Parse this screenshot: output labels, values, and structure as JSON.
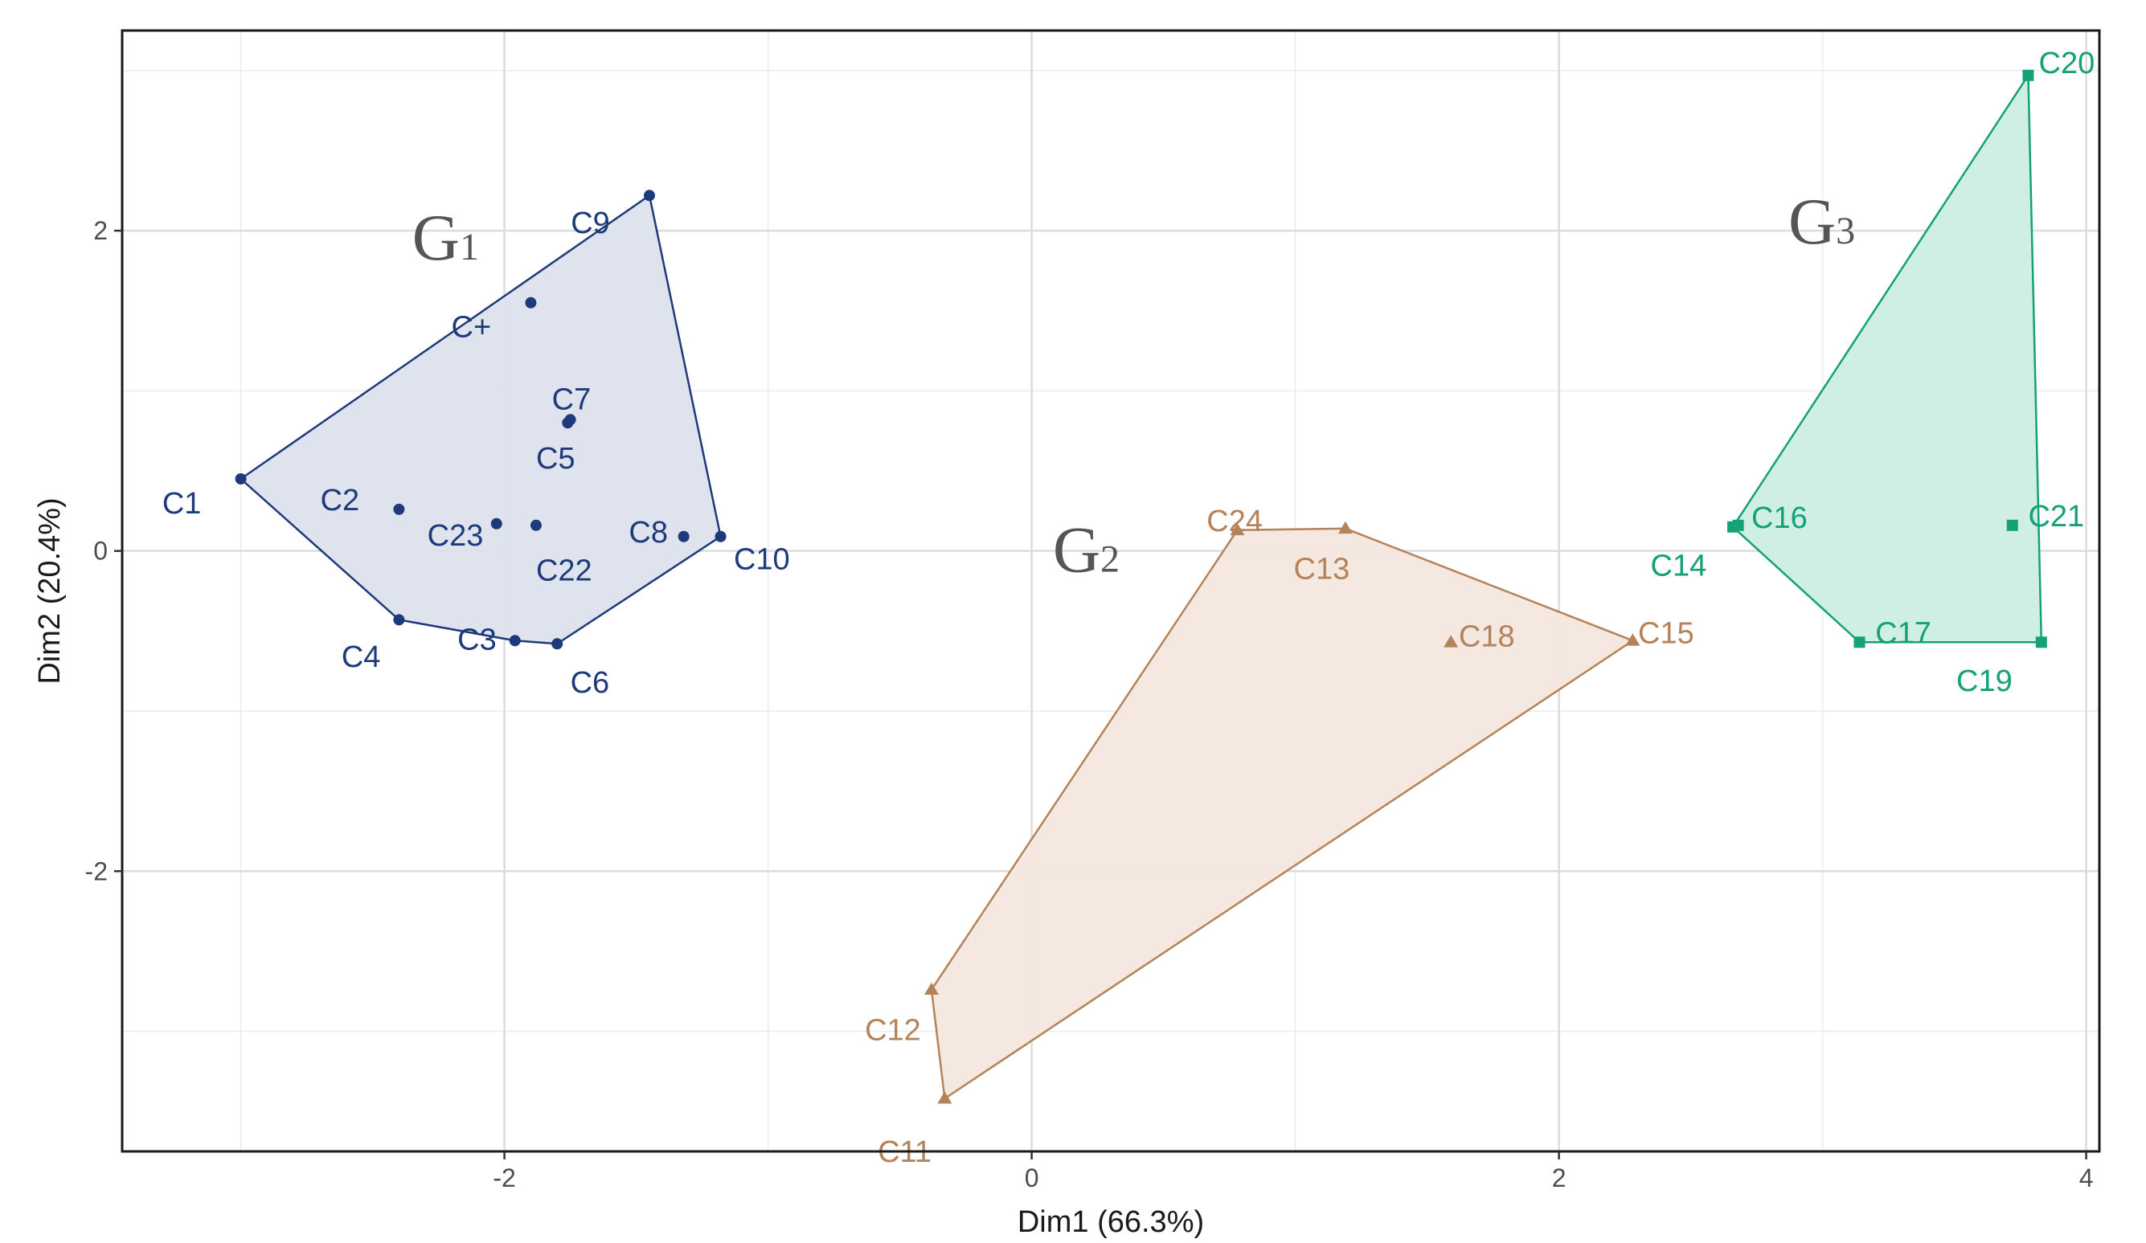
{
  "chart_data": {
    "type": "scatter",
    "title": "",
    "xlabel": "Dim1 (66.3%)",
    "ylabel": "Dim2 (20.4%)",
    "xlim": [
      -3.45,
      4.05
    ],
    "ylim": [
      -3.75,
      3.25
    ],
    "xticks": [
      -2,
      0,
      2,
      4
    ],
    "yticks": [
      -2,
      0,
      2
    ],
    "xtick_labels": [
      "-2",
      "0",
      "2",
      "4"
    ],
    "ytick_labels": [
      "-2",
      "0",
      "2"
    ],
    "grid": true,
    "legend": "none",
    "groups": [
      {
        "name": "G1",
        "label_main": "G",
        "label_sub": "1",
        "label_pos": [
          -2.35,
          1.95
        ],
        "color": "#1f3a7a",
        "fill": "#dce1ec",
        "marker": "circle",
        "hull": [
          "C1",
          "C9",
          "C10",
          "C6",
          "C3",
          "C4"
        ],
        "points": [
          {
            "name": "C1",
            "x": -3.0,
            "y": 0.45,
            "lx": -3.15,
            "ly": 0.3,
            "anchor": "end"
          },
          {
            "name": "C9",
            "x": -1.45,
            "y": 2.22,
            "lx": -1.6,
            "ly": 2.05,
            "anchor": "end"
          },
          {
            "name": "C+",
            "x": -1.9,
            "y": 1.55,
            "lx": -2.05,
            "ly": 1.4,
            "anchor": "end"
          },
          {
            "name": "C7",
            "x": -1.75,
            "y": 0.82,
            "lx": -1.82,
            "ly": 0.95,
            "anchor": "start"
          },
          {
            "name": "C5",
            "x": -1.76,
            "y": 0.8,
            "lx": -1.88,
            "ly": 0.58,
            "anchor": "start"
          },
          {
            "name": "C2",
            "x": -2.4,
            "y": 0.26,
            "lx": -2.55,
            "ly": 0.32,
            "anchor": "end"
          },
          {
            "name": "C23",
            "x": -2.03,
            "y": 0.17,
            "lx": -2.08,
            "ly": 0.1,
            "anchor": "end"
          },
          {
            "name": "C22",
            "x": -1.88,
            "y": 0.16,
            "lx": -1.88,
            "ly": -0.12,
            "anchor": "start"
          },
          {
            "name": "C8",
            "x": -1.32,
            "y": 0.09,
            "lx": -1.38,
            "ly": 0.12,
            "anchor": "end"
          },
          {
            "name": "C10",
            "x": -1.18,
            "y": 0.09,
            "lx": -1.13,
            "ly": -0.05,
            "anchor": "start"
          },
          {
            "name": "C4",
            "x": -2.4,
            "y": -0.43,
            "lx": -2.47,
            "ly": -0.66,
            "anchor": "end"
          },
          {
            "name": "C3",
            "x": -1.96,
            "y": -0.56,
            "lx": -2.03,
            "ly": -0.55,
            "anchor": "end"
          },
          {
            "name": "C6",
            "x": -1.8,
            "y": -0.58,
            "lx": -1.75,
            "ly": -0.82,
            "anchor": "start"
          }
        ]
      },
      {
        "name": "G2",
        "label_main": "G",
        "label_sub": "2",
        "label_pos": [
          0.08,
          0.0
        ],
        "color": "#b5835a",
        "fill": "#f4e7de",
        "marker": "triangle",
        "hull": [
          "C24",
          "C13",
          "C15",
          "C11",
          "C12"
        ],
        "points": [
          {
            "name": "C24",
            "x": 0.78,
            "y": 0.13,
            "lx": 0.77,
            "ly": 0.19,
            "anchor": "middle"
          },
          {
            "name": "C13",
            "x": 1.19,
            "y": 0.14,
            "lx": 1.1,
            "ly": -0.11,
            "anchor": "middle"
          },
          {
            "name": "C18",
            "x": 1.59,
            "y": -0.57,
            "lx": 1.62,
            "ly": -0.53,
            "anchor": "start"
          },
          {
            "name": "C15",
            "x": 2.28,
            "y": -0.56,
            "lx": 2.3,
            "ly": -0.51,
            "anchor": "start"
          },
          {
            "name": "C12",
            "x": -0.38,
            "y": -2.74,
            "lx": -0.42,
            "ly": -2.99,
            "anchor": "end"
          },
          {
            "name": "C11",
            "x": -0.33,
            "y": -3.42,
            "lx": -0.38,
            "ly": -3.75,
            "anchor": "end"
          }
        ]
      },
      {
        "name": "G3",
        "label_main": "G",
        "label_sub": "3",
        "label_pos": [
          2.87,
          2.05
        ],
        "color": "#15a178",
        "fill": "#cdeee3",
        "marker": "square",
        "hull": [
          "C20",
          "C19",
          "C17",
          "C14"
        ],
        "points": [
          {
            "name": "C20",
            "x": 3.78,
            "y": 2.97,
            "lx": 3.82,
            "ly": 3.05,
            "anchor": "start"
          },
          {
            "name": "C16",
            "x": 2.68,
            "y": 0.16,
            "lx": 2.73,
            "ly": 0.21,
            "anchor": "start"
          },
          {
            "name": "C21",
            "x": 3.72,
            "y": 0.16,
            "lx": 3.78,
            "ly": 0.22,
            "anchor": "start"
          },
          {
            "name": "C14",
            "x": 2.66,
            "y": 0.15,
            "lx": 2.56,
            "ly": -0.09,
            "anchor": "end"
          },
          {
            "name": "C17",
            "x": 3.14,
            "y": -0.57,
            "lx": 3.2,
            "ly": -0.51,
            "anchor": "start"
          },
          {
            "name": "C19",
            "x": 3.83,
            "y": -0.57,
            "lx": 3.72,
            "ly": -0.81,
            "anchor": "end"
          }
        ]
      }
    ]
  }
}
